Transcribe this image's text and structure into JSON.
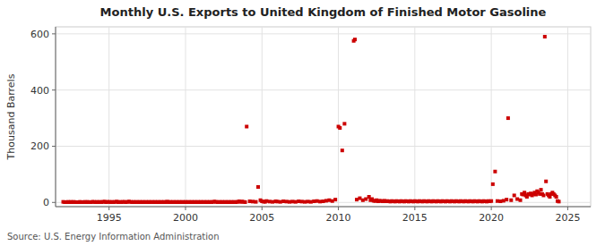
{
  "chart_data": {
    "type": "scatter",
    "title": "Monthly U.S. Exports to United Kingdom of Finished Motor Gasoline",
    "y_label": "Thousand Barrels",
    "source": "Source: U.S. Energy Information Administration",
    "color": "#cc0000",
    "marker": "square",
    "grid": true,
    "xlim": [
      1991.5,
      2026.5
    ],
    "ylim": [
      -15,
      625
    ],
    "xticks": [
      1995,
      2000,
      2005,
      2010,
      2015,
      2020,
      2025
    ],
    "yticks": [
      0,
      200,
      400,
      600
    ],
    "x": [
      1992.0,
      1992.1,
      1992.2,
      1992.3,
      1992.4,
      1992.5,
      1992.6,
      1992.7,
      1992.8,
      1992.9,
      1993.0,
      1993.1,
      1993.2,
      1993.3,
      1993.4,
      1993.5,
      1993.6,
      1993.7,
      1993.8,
      1993.9,
      1994.0,
      1994.1,
      1994.2,
      1994.3,
      1994.4,
      1994.5,
      1994.6,
      1994.7,
      1994.8,
      1994.9,
      1995.0,
      1995.1,
      1995.2,
      1995.3,
      1995.4,
      1995.5,
      1995.6,
      1995.7,
      1995.8,
      1995.9,
      1996.0,
      1996.1,
      1996.2,
      1996.3,
      1996.4,
      1996.5,
      1996.6,
      1996.7,
      1996.8,
      1996.9,
      1997.0,
      1997.1,
      1997.2,
      1997.3,
      1997.4,
      1997.5,
      1997.6,
      1997.7,
      1997.8,
      1997.9,
      1998.0,
      1998.1,
      1998.2,
      1998.3,
      1998.4,
      1998.5,
      1998.6,
      1998.7,
      1998.8,
      1998.9,
      1999.0,
      1999.1,
      1999.2,
      1999.3,
      1999.4,
      1999.5,
      1999.6,
      1999.7,
      1999.8,
      1999.9,
      2000.0,
      2000.1,
      2000.2,
      2000.3,
      2000.4,
      2000.5,
      2000.6,
      2000.7,
      2000.8,
      2000.9,
      2001.0,
      2001.1,
      2001.2,
      2001.3,
      2001.4,
      2001.5,
      2001.6,
      2001.7,
      2001.8,
      2001.9,
      2002.0,
      2002.1,
      2002.2,
      2002.3,
      2002.4,
      2002.5,
      2002.6,
      2002.7,
      2002.8,
      2002.9,
      2003.0,
      2003.1,
      2003.2,
      2003.3,
      2003.4,
      2003.5,
      2003.6,
      2003.7,
      2003.8,
      2003.9,
      2004.0,
      2004.2,
      2004.4,
      2004.6,
      2004.75,
      2004.9,
      2005.0,
      2005.1,
      2005.2,
      2005.3,
      2005.5,
      2005.7,
      2005.9,
      2006.0,
      2006.2,
      2006.4,
      2006.6,
      2006.8,
      2007.0,
      2007.2,
      2007.4,
      2007.6,
      2007.8,
      2008.0,
      2008.2,
      2008.4,
      2008.6,
      2008.8,
      2009.0,
      2009.2,
      2009.4,
      2009.6,
      2009.8,
      2010.0,
      2010.1,
      2010.25,
      2010.4,
      2011.0,
      2011.08,
      2011.2,
      2011.4,
      2011.6,
      2011.8,
      2012.0,
      2012.1,
      2012.2,
      2012.3,
      2012.4,
      2012.5,
      2012.6,
      2012.7,
      2012.8,
      2012.9,
      2013.0,
      2013.1,
      2013.2,
      2013.3,
      2013.4,
      2013.5,
      2013.6,
      2013.7,
      2013.8,
      2013.9,
      2014.0,
      2014.1,
      2014.2,
      2014.3,
      2014.4,
      2014.5,
      2014.6,
      2014.7,
      2014.8,
      2014.9,
      2015.0,
      2015.1,
      2015.2,
      2015.3,
      2015.4,
      2015.5,
      2015.6,
      2015.7,
      2015.8,
      2015.9,
      2016.0,
      2016.1,
      2016.2,
      2016.3,
      2016.4,
      2016.5,
      2016.6,
      2016.7,
      2016.8,
      2016.9,
      2017.0,
      2017.1,
      2017.2,
      2017.3,
      2017.4,
      2017.5,
      2017.6,
      2017.7,
      2017.8,
      2017.9,
      2018.0,
      2018.1,
      2018.2,
      2018.3,
      2018.4,
      2018.5,
      2018.6,
      2018.7,
      2018.8,
      2018.9,
      2019.0,
      2019.1,
      2019.2,
      2019.3,
      2019.4,
      2019.5,
      2019.6,
      2019.7,
      2019.8,
      2019.9,
      2020.0,
      2020.1,
      2020.25,
      2020.4,
      2020.6,
      2020.8,
      2021.0,
      2021.1,
      2021.3,
      2021.5,
      2021.7,
      2021.9,
      2022.0,
      2022.08,
      2022.17,
      2022.25,
      2022.33,
      2022.42,
      2022.5,
      2022.58,
      2022.67,
      2022.75,
      2022.83,
      2022.92,
      2023.0,
      2023.08,
      2023.17,
      2023.25,
      2023.33,
      2023.42,
      2023.5,
      2023.58,
      2023.67,
      2023.75,
      2023.83,
      2023.92,
      2024.0,
      2024.08,
      2024.17,
      2024.25,
      2024.33,
      2024.42
    ],
    "values": [
      2,
      1,
      1,
      2,
      1,
      2,
      1,
      2,
      1,
      1,
      1,
      2,
      1,
      1,
      2,
      1,
      2,
      1,
      1,
      2,
      2,
      1,
      2,
      1,
      2,
      1,
      2,
      3,
      1,
      2,
      2,
      1,
      2,
      1,
      2,
      3,
      1,
      2,
      1,
      2,
      2,
      1,
      2,
      3,
      2,
      1,
      2,
      1,
      2,
      1,
      2,
      1,
      2,
      1,
      2,
      1,
      2,
      1,
      2,
      1,
      2,
      1,
      2,
      1,
      2,
      1,
      2,
      1,
      3,
      1,
      2,
      1,
      2,
      1,
      2,
      1,
      2,
      1,
      2,
      1,
      2,
      1,
      2,
      1,
      2,
      1,
      2,
      1,
      2,
      1,
      2,
      1,
      2,
      1,
      2,
      1,
      2,
      1,
      2,
      3,
      2,
      1,
      2,
      1,
      2,
      1,
      2,
      1,
      2,
      1,
      2,
      1,
      2,
      1,
      2,
      4,
      2,
      3,
      2,
      1,
      270,
      4,
      3,
      2,
      55,
      8,
      4,
      3,
      2,
      5,
      3,
      2,
      4,
      3,
      2,
      4,
      3,
      2,
      3,
      2,
      4,
      3,
      2,
      3,
      2,
      4,
      5,
      3,
      4,
      6,
      8,
      5,
      10,
      270,
      265,
      185,
      280,
      575,
      580,
      10,
      15,
      8,
      12,
      20,
      8,
      12,
      6,
      5,
      8,
      4,
      6,
      5,
      4,
      6,
      4,
      5,
      4,
      3,
      5,
      4,
      3,
      5,
      4,
      3,
      5,
      4,
      3,
      5,
      4,
      3,
      5,
      4,
      3,
      5,
      4,
      3,
      5,
      4,
      3,
      5,
      4,
      3,
      5,
      4,
      3,
      5,
      4,
      3,
      5,
      4,
      3,
      5,
      4,
      3,
      5,
      4,
      3,
      5,
      4,
      3,
      5,
      4,
      3,
      5,
      4,
      3,
      5,
      4,
      3,
      5,
      4,
      3,
      5,
      4,
      3,
      5,
      4,
      3,
      5,
      4,
      3,
      5,
      4,
      5,
      65,
      110,
      5,
      4,
      6,
      10,
      300,
      8,
      25,
      12,
      8,
      30,
      28,
      35,
      25,
      20,
      30,
      28,
      32,
      25,
      30,
      35,
      28,
      40,
      35,
      30,
      45,
      30,
      25,
      590,
      75,
      30,
      25,
      20,
      30,
      35,
      30,
      25,
      20,
      5,
      3
    ]
  }
}
